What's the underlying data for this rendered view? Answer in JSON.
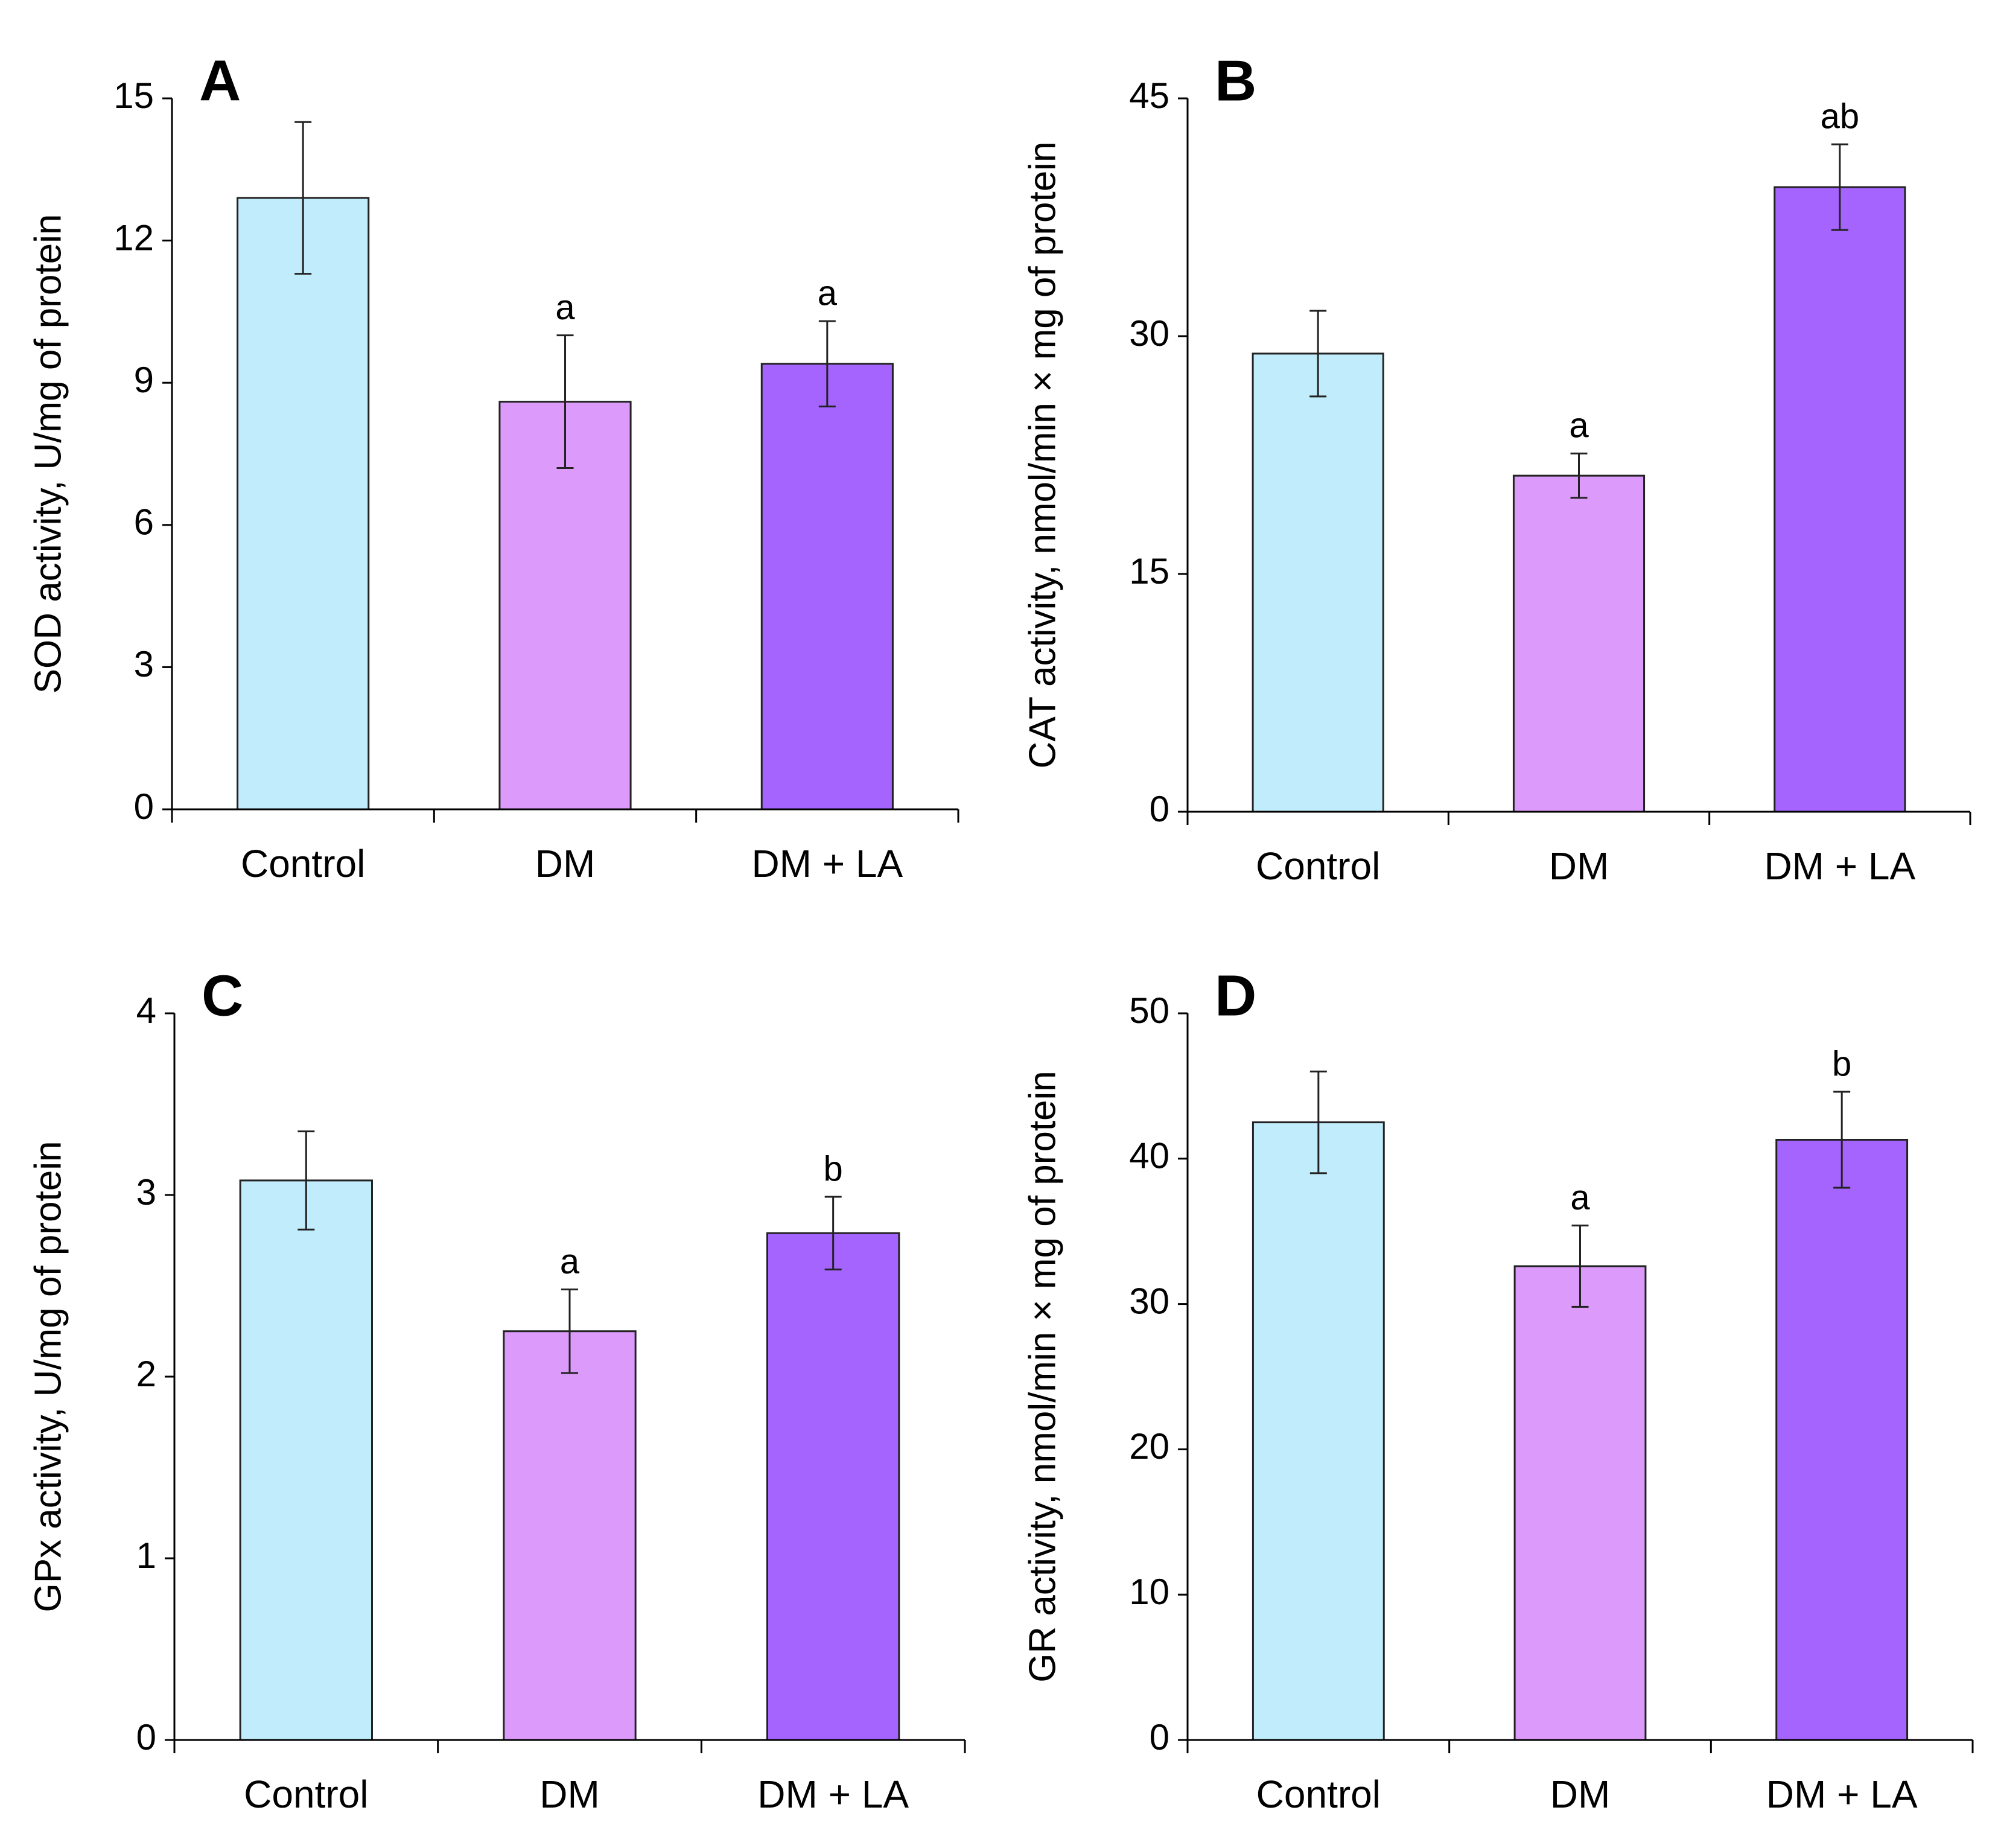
{
  "chart_data": [
    {
      "type": "bar",
      "panel": "A",
      "ylabel": "SOD activity, U/mg of protein",
      "categories": [
        "Control",
        "DM",
        "DM + LA"
      ],
      "values": [
        12.9,
        8.6,
        9.4
      ],
      "errors": [
        1.6,
        1.4,
        0.9
      ],
      "annotations": [
        null,
        "a",
        "a"
      ],
      "colors": [
        "#c1ecfb",
        "#dc9bfb",
        "#a564fe"
      ],
      "ylim": [
        0,
        15
      ],
      "yticks": [
        0,
        3,
        6,
        9,
        12,
        15
      ]
    },
    {
      "type": "bar",
      "panel": "B",
      "ylabel": "CAT activity, nmol/min × mg of protein",
      "categories": [
        "Control",
        "DM",
        "DM + LA"
      ],
      "values": [
        28.9,
        21.2,
        39.4
      ],
      "errors": [
        2.7,
        1.4,
        2.7
      ],
      "annotations": [
        null,
        "a",
        "ab"
      ],
      "colors": [
        "#c1ecfb",
        "#dc9bfb",
        "#a564fe"
      ],
      "ylim": [
        0,
        45
      ],
      "yticks": [
        0,
        15,
        30,
        45
      ]
    },
    {
      "type": "bar",
      "panel": "C",
      "ylabel": "GPx activity, U/mg of protein",
      "categories": [
        "Control",
        "DM",
        "DM + LA"
      ],
      "values": [
        3.08,
        2.25,
        2.79
      ],
      "errors": [
        0.27,
        0.23,
        0.2
      ],
      "annotations": [
        null,
        "a",
        "b"
      ],
      "colors": [
        "#c1ecfb",
        "#dc9bfb",
        "#a564fe"
      ],
      "ylim": [
        0,
        4
      ],
      "yticks": [
        0,
        1,
        2,
        3,
        4
      ]
    },
    {
      "type": "bar",
      "panel": "D",
      "ylabel": "GR activity, nmol/min × mg of protein",
      "categories": [
        "Control",
        "DM",
        "DM + LA"
      ],
      "values": [
        42.5,
        32.6,
        41.3
      ],
      "errors": [
        3.5,
        2.8,
        3.3
      ],
      "annotations": [
        null,
        "a",
        "b"
      ],
      "colors": [
        "#c1ecfb",
        "#dc9bfb",
        "#a564fe"
      ],
      "ylim": [
        0,
        50
      ],
      "yticks": [
        0,
        10,
        20,
        30,
        40,
        50
      ]
    }
  ]
}
